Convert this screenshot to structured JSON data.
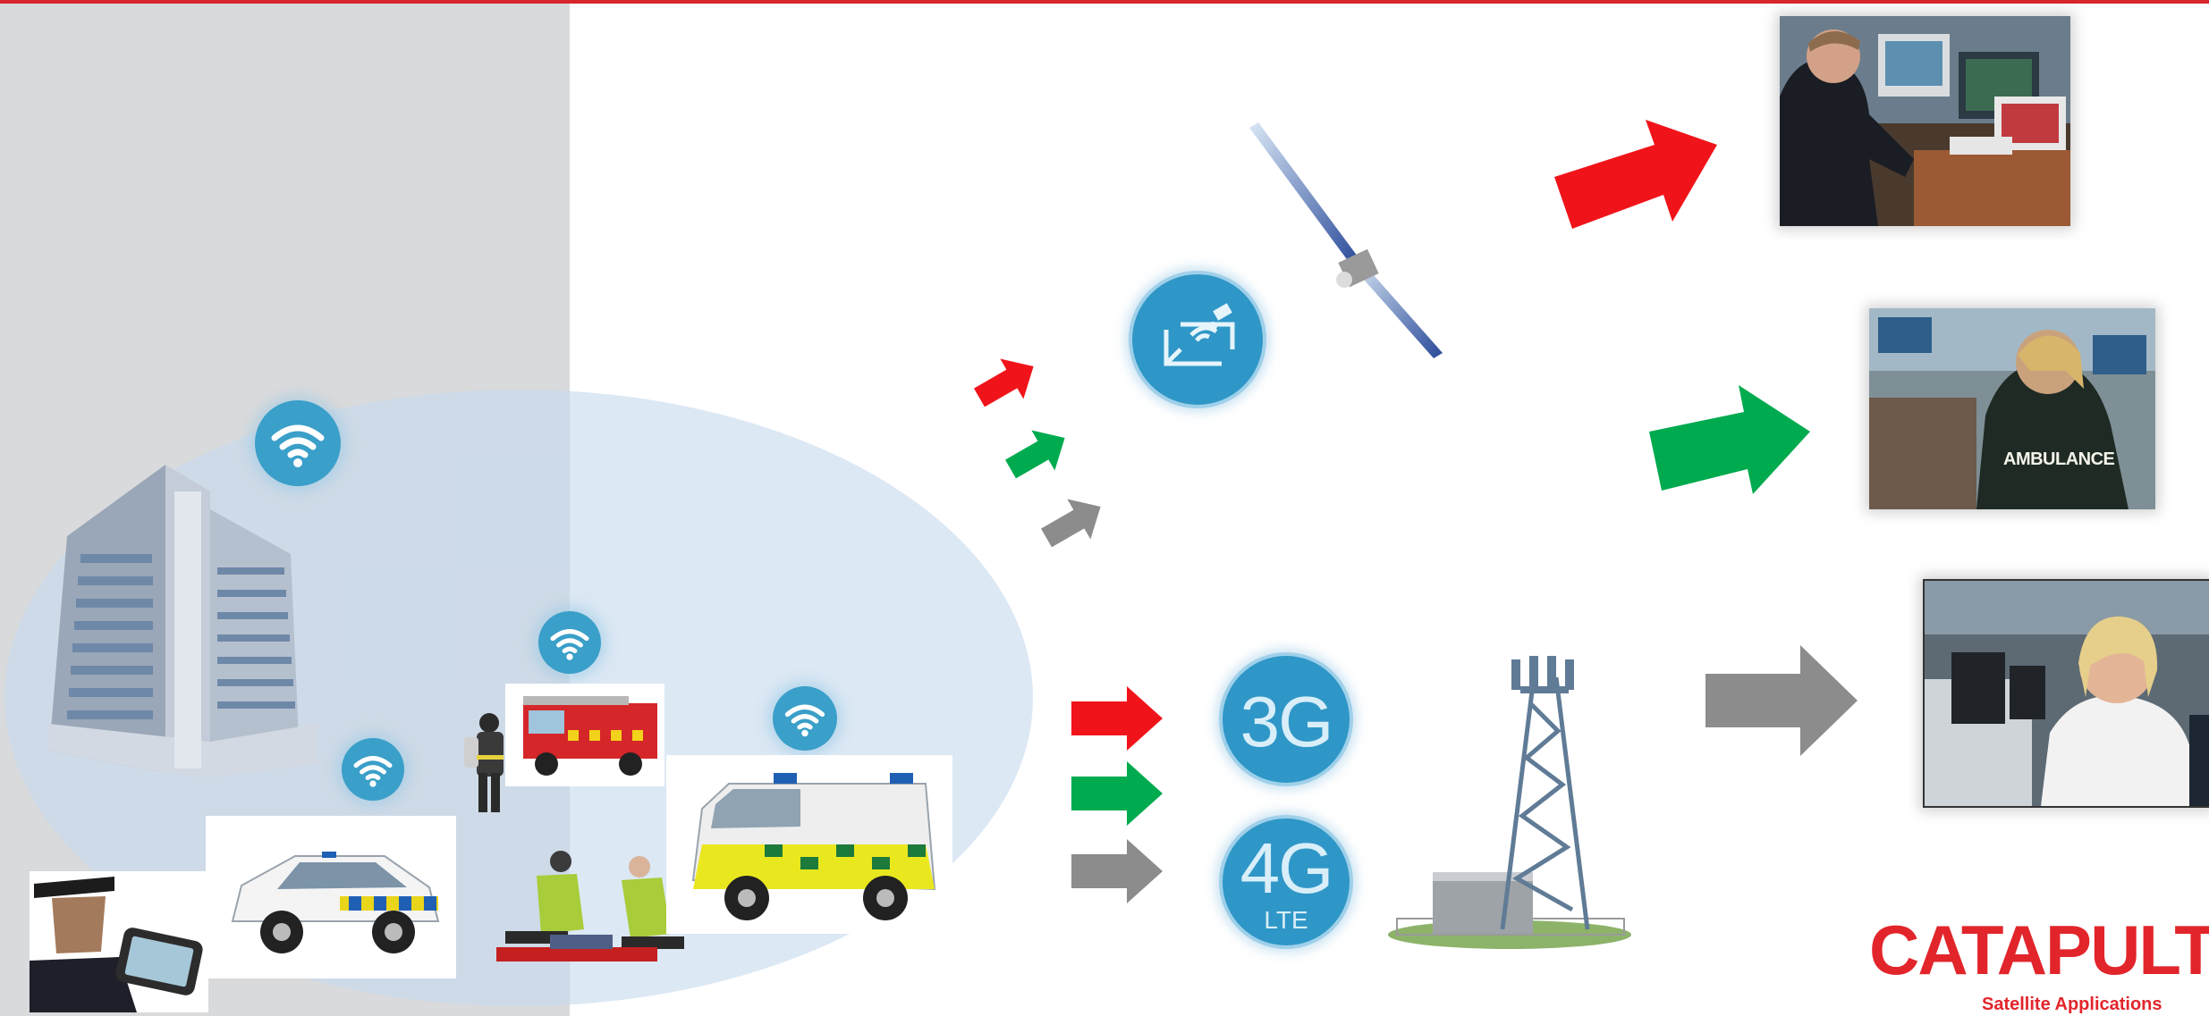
{
  "diagram": {
    "network_labels": {
      "three_g": "3G",
      "four_g": "4G",
      "lte": "LTE"
    },
    "photo_text": {
      "ambulance_jacket": "AMBULANCE"
    },
    "logo": {
      "word": "CATAPULT",
      "tagline": "Satellite Applications"
    },
    "colors": {
      "red_arrow": "#f0141a",
      "green_arrow": "#00aa4f",
      "grey_arrow": "#8c8c8c",
      "wifi_badge": "#3a9fc9",
      "brand_red": "#e2252b",
      "coverage_ellipse": "#c6daee"
    },
    "icons": [
      "wifi-icon",
      "satellite-dish-icon",
      "satellite-icon",
      "cell-tower-icon",
      "building-icon",
      "police-car-icon",
      "fire-engine-icon",
      "ambulance-icon",
      "paramedics-icon",
      "firefighter-icon",
      "police-officer-icon"
    ]
  }
}
